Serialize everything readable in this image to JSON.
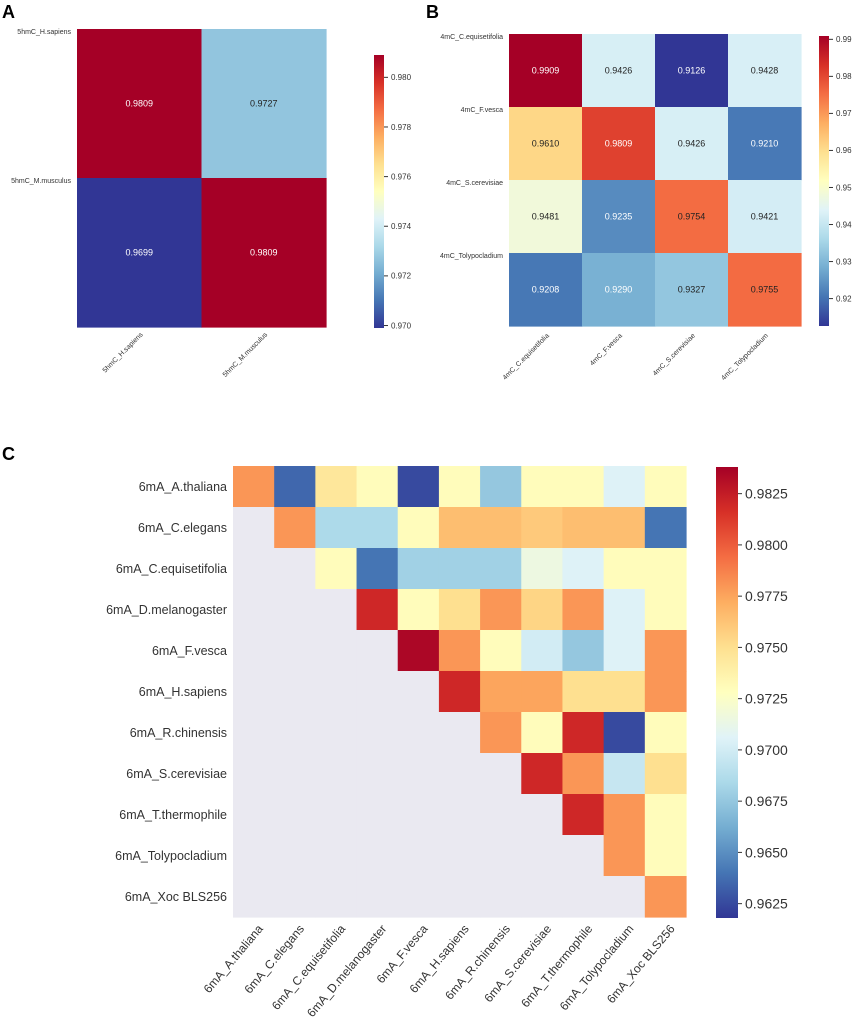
{
  "panels": [
    {
      "id": "A",
      "letter": "A",
      "chart_data": {
        "type": "heatmap",
        "rows": [
          "5hmC_H.sapiens",
          "5hmC_M.musculus"
        ],
        "cols": [
          "5hmC_H.sapiens",
          "5hmC_M.musculus"
        ],
        "values": [
          [
            0.9809,
            0.9727
          ],
          [
            0.9699,
            0.9809
          ]
        ],
        "cell_labels": [
          [
            "0.9809",
            "0.9727"
          ],
          [
            "0.9699",
            "0.9809"
          ]
        ],
        "vmin": 0.9699,
        "vmax": 0.9809,
        "colorbar_ticks": [
          "0.980",
          "0.978",
          "0.976",
          "0.974",
          "0.972",
          "0.970"
        ],
        "colorbar_tick_values": [
          0.98,
          0.978,
          0.976,
          0.974,
          0.972,
          0.97
        ],
        "cmap": "RdYlBu_r"
      }
    },
    {
      "id": "B",
      "letter": "B",
      "chart_data": {
        "type": "heatmap",
        "rows": [
          "4mC_C.equisetifolia",
          "4mC_F.vesca",
          "4mC_S.cerevisiae",
          "4mC_Tolypocladium"
        ],
        "cols": [
          "4mC_C.equisetifolia",
          "4mC_F.vesca",
          "4mC_S.cerevisiae",
          "4mC_Tolypocladium"
        ],
        "values": [
          [
            0.9909,
            0.9426,
            0.9126,
            0.9428
          ],
          [
            0.961,
            0.9809,
            0.9426,
            0.921
          ],
          [
            0.9481,
            0.9235,
            0.9754,
            0.9421
          ],
          [
            0.9208,
            0.929,
            0.9327,
            0.9755
          ]
        ],
        "cell_labels": [
          [
            "0.9909",
            "0.9426",
            "0.9126",
            "0.9428"
          ],
          [
            "0.9610",
            "0.9809",
            "0.9426",
            "0.9210"
          ],
          [
            "0.9481",
            "0.9235",
            "0.9754",
            "0.9421"
          ],
          [
            "0.9208",
            "0.9290",
            "0.9327",
            "0.9755"
          ]
        ],
        "vmin": 0.9126,
        "vmax": 0.9909,
        "colorbar_ticks": [
          "0.99",
          "0.98",
          "0.97",
          "0.96",
          "0.95",
          "0.94",
          "0.93",
          "0.92"
        ],
        "colorbar_tick_values": [
          0.99,
          0.98,
          0.97,
          0.96,
          0.95,
          0.94,
          0.93,
          0.92
        ],
        "cmap": "RdYlBu_r"
      }
    },
    {
      "id": "C",
      "letter": "C",
      "chart_data": {
        "type": "heatmap",
        "triangular": "upper",
        "rows": [
          "6mA_A.thaliana",
          "6mA_C.elegans",
          "6mA_C.equisetifolia",
          "6mA_D.melanogaster",
          "6mA_F.vesca",
          "6mA_H.sapiens",
          "6mA_R.chinensis",
          "6mA_S.cerevisiae",
          "6mA_T.thermophile",
          "6mA_Tolypocladium",
          "6mA_Xoc BLS256"
        ],
        "cols": [
          "6mA_A.thaliana",
          "6mA_C.elegans",
          "6mA_C.equisetifolia",
          "6mA_D.melanogaster",
          "6mA_F.vesca",
          "6mA_H.sapiens",
          "6mA_R.chinensis",
          "6mA_S.cerevisiae",
          "6mA_T.thermophile",
          "6mA_Tolypocladium",
          "6mA_Xoc BLS256"
        ],
        "values": [
          [
            0.978,
            0.9635,
            0.9745,
            0.973,
            0.9625,
            0.973,
            0.9675,
            0.973,
            0.973,
            0.9705,
            0.973
          ],
          [
            null,
            0.978,
            0.9685,
            0.9685,
            0.973,
            0.9765,
            0.9765,
            0.976,
            0.9765,
            0.9765,
            0.964
          ],
          [
            null,
            null,
            0.973,
            0.964,
            0.968,
            0.968,
            0.968,
            0.9715,
            0.9705,
            0.973,
            0.973
          ],
          [
            null,
            null,
            null,
            0.982,
            0.973,
            0.975,
            0.978,
            0.9755,
            0.978,
            0.9705,
            0.973
          ],
          [
            null,
            null,
            null,
            null,
            0.9835,
            0.978,
            0.973,
            0.97,
            0.9675,
            0.9705,
            0.978
          ],
          [
            null,
            null,
            null,
            null,
            null,
            0.982,
            0.9775,
            0.9775,
            0.975,
            0.975,
            0.978
          ],
          [
            null,
            null,
            null,
            null,
            null,
            null,
            0.978,
            0.973,
            0.982,
            0.9625,
            0.973
          ],
          [
            null,
            null,
            null,
            null,
            null,
            null,
            null,
            0.982,
            0.978,
            0.9695,
            0.975
          ],
          [
            null,
            null,
            null,
            null,
            null,
            null,
            null,
            null,
            0.982,
            0.978,
            0.973
          ],
          [
            null,
            null,
            null,
            null,
            null,
            null,
            null,
            null,
            null,
            0.978,
            0.973
          ],
          [
            null,
            null,
            null,
            null,
            null,
            null,
            null,
            null,
            null,
            null,
            0.978
          ]
        ],
        "vmin": 0.9618,
        "vmax": 0.9838,
        "colorbar_ticks": [
          "0.9825",
          "0.9800",
          "0.9775",
          "0.9750",
          "0.9725",
          "0.9700",
          "0.9675",
          "0.9650",
          "0.9625"
        ],
        "colorbar_tick_values": [
          0.9825,
          0.98,
          0.9775,
          0.975,
          0.9725,
          0.97,
          0.9675,
          0.965,
          0.9625
        ],
        "cmap": "RdYlBu_r",
        "masked_color": "#eae9f1"
      }
    }
  ]
}
